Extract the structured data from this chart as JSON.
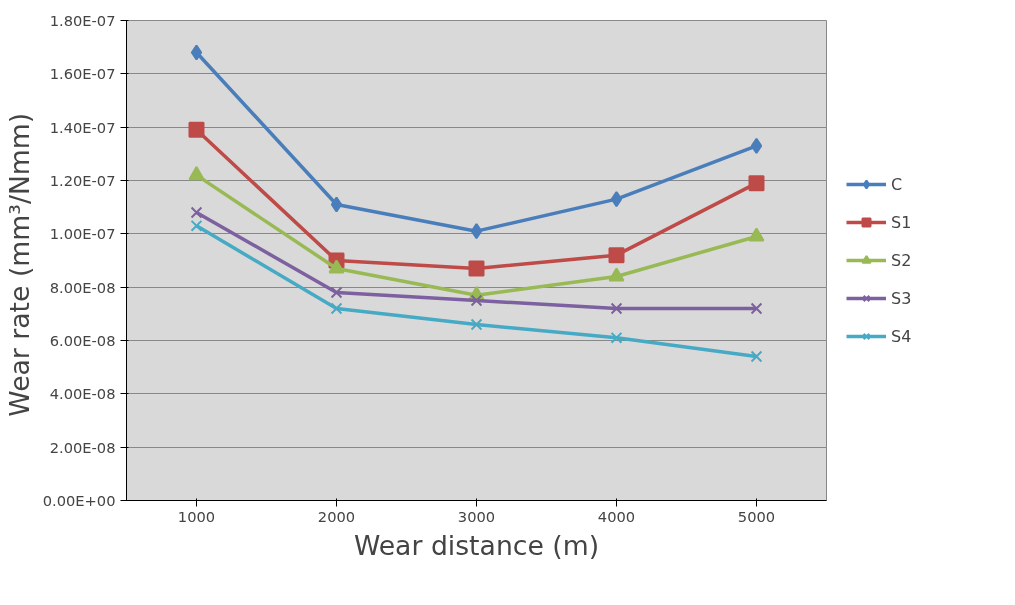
{
  "chart_data": {
    "type": "line",
    "xlabel": "Wear distance (m)",
    "ylabel": "Wear  rate (mm³/Nmm)",
    "categories": [
      "1000",
      "2000",
      "3000",
      "4000",
      "5000"
    ],
    "ylim": [
      0,
      1.8e-07
    ],
    "yticks": [
      {
        "value": 0,
        "label": "0.00E+00"
      },
      {
        "value": 2e-08,
        "label": "2.00E-08"
      },
      {
        "value": 4e-08,
        "label": "4.00E-08"
      },
      {
        "value": 6e-08,
        "label": "6.00E-08"
      },
      {
        "value": 8e-08,
        "label": "8.00E-08"
      },
      {
        "value": 1e-07,
        "label": "1.00E-07"
      },
      {
        "value": 1.2e-07,
        "label": "1.20E-07"
      },
      {
        "value": 1.4e-07,
        "label": "1.40E-07"
      },
      {
        "value": 1.6e-07,
        "label": "1.60E-07"
      },
      {
        "value": 1.8e-07,
        "label": "1.80E-07"
      }
    ],
    "grid": "y",
    "legend": "right",
    "line_style": "solid",
    "series": [
      {
        "name": "C",
        "color": "#4a7ebb",
        "marker": "diamond",
        "values": [
          1.68e-07,
          1.11e-07,
          1.01e-07,
          1.13e-07,
          1.33e-07
        ]
      },
      {
        "name": "S1",
        "color": "#be4b48",
        "marker": "square",
        "values": [
          1.39e-07,
          9e-08,
          8.7e-08,
          9.2e-08,
          1.19e-07
        ]
      },
      {
        "name": "S2",
        "color": "#98b954",
        "marker": "triangle",
        "values": [
          1.22e-07,
          8.7e-08,
          7.7e-08,
          8.4e-08,
          9.9e-08
        ]
      },
      {
        "name": "S3",
        "color": "#7d60a0",
        "marker": "cross",
        "values": [
          1.08e-07,
          7.8e-08,
          7.5e-08,
          7.2e-08,
          7.2e-08
        ]
      },
      {
        "name": "S4",
        "color": "#46aac5",
        "marker": "cross",
        "values": [
          1.03e-07,
          7.2e-08,
          6.6e-08,
          6.1e-08,
          5.4e-08
        ]
      }
    ]
  }
}
